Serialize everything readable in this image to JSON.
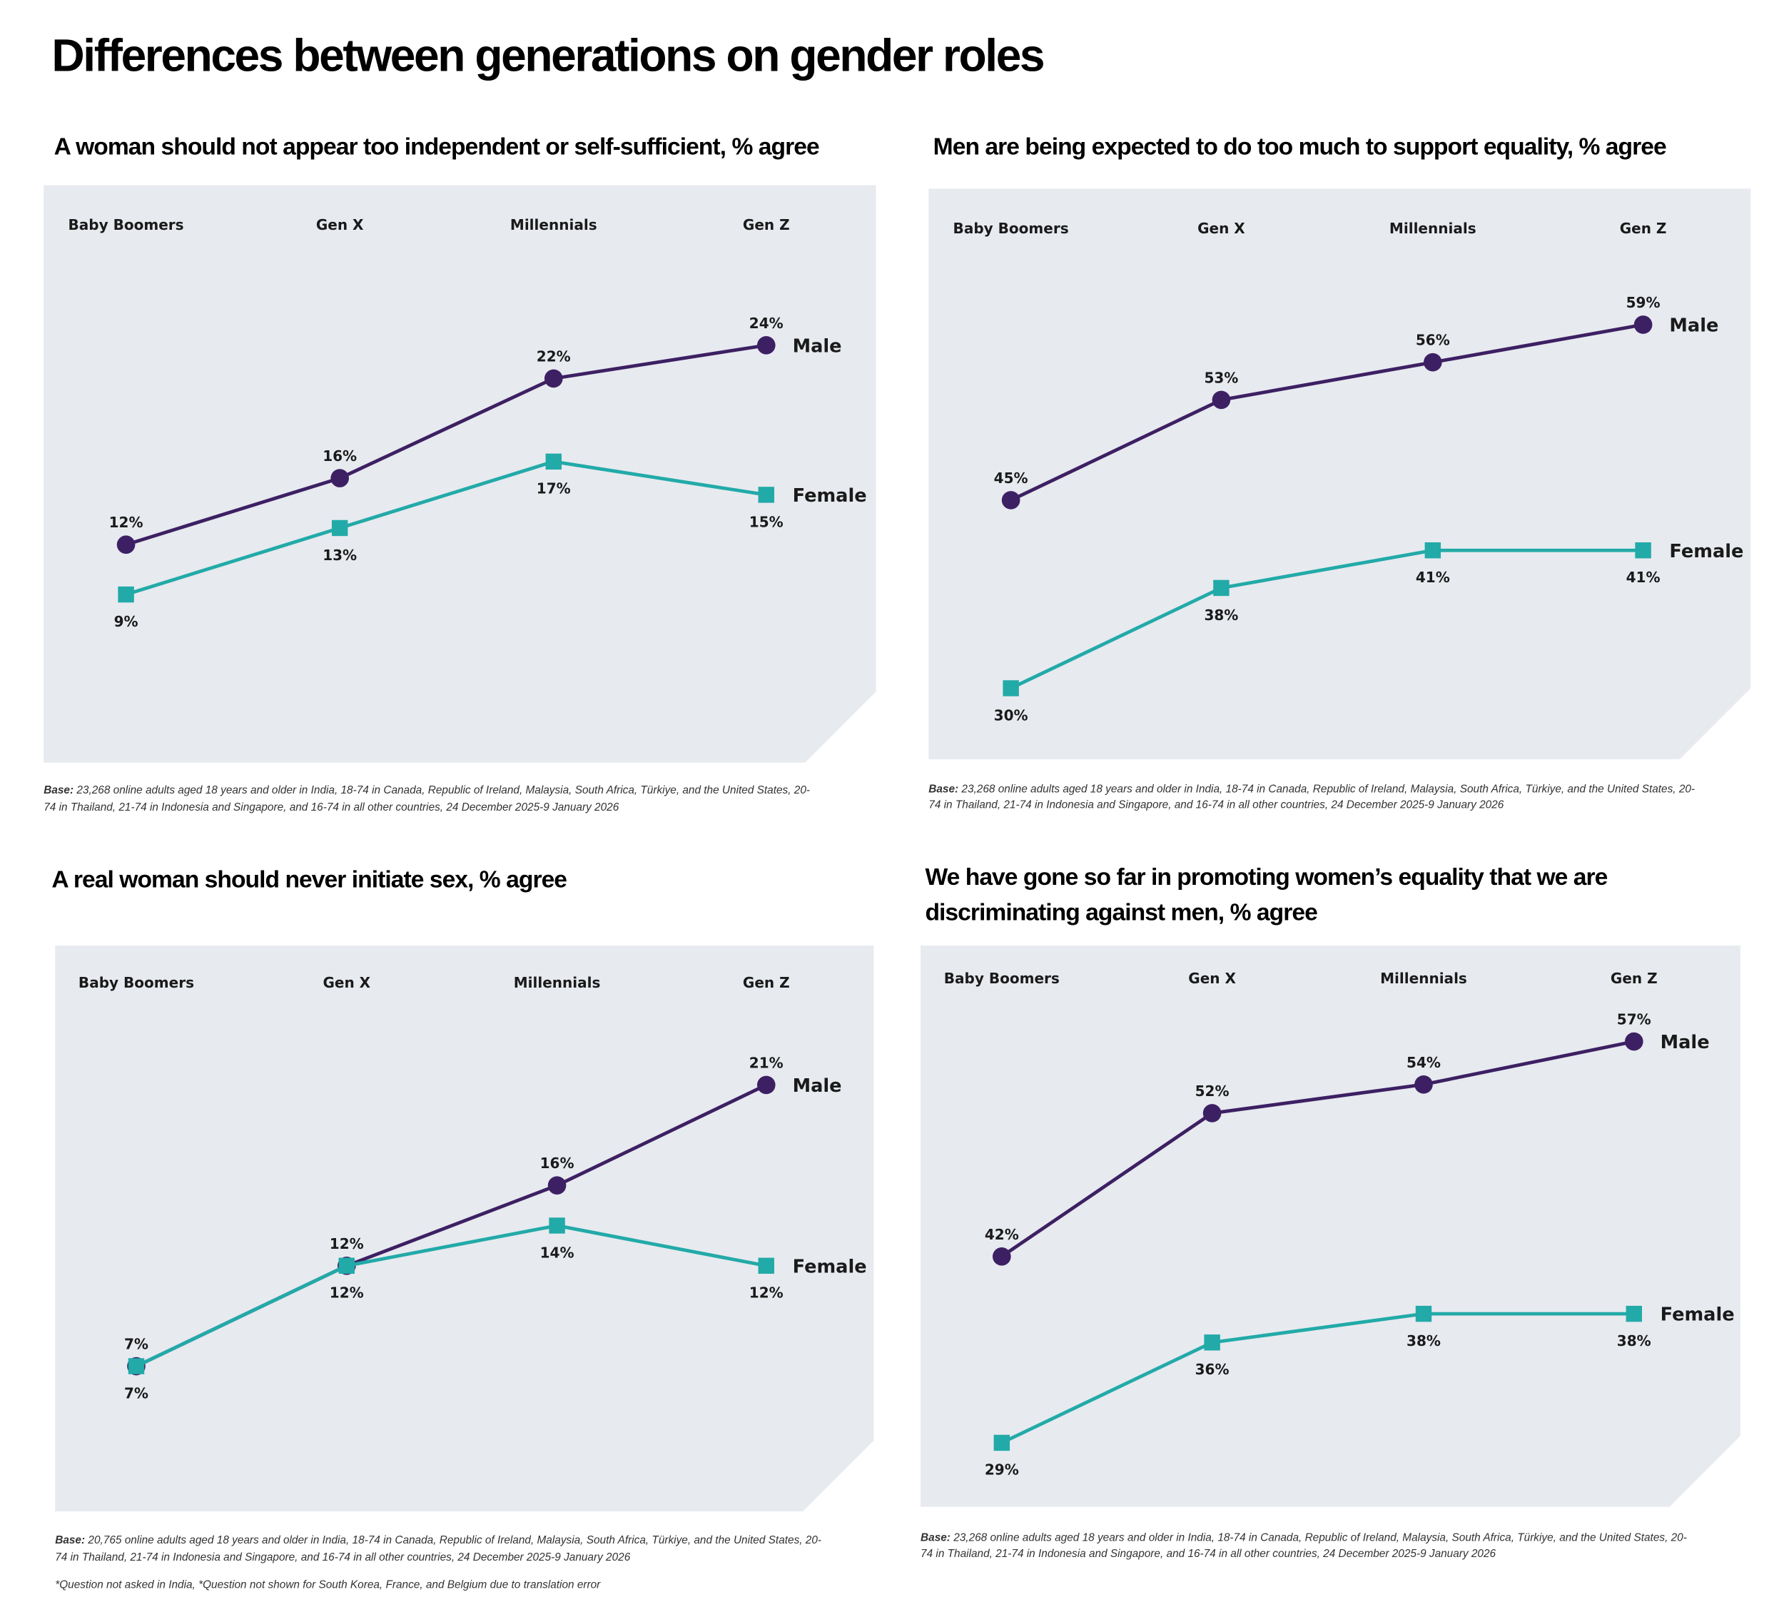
{
  "title": "Differences between generations on gender roles",
  "colors": {
    "male": "#3d2063",
    "female": "#22aaa8",
    "panel_bg": "#e7eaef"
  },
  "chart_data": [
    {
      "type": "line",
      "title": "A woman should not appear too independent or self-sufficient, % agree",
      "categories": [
        "Baby Boomers",
        "Gen X",
        "Millennials",
        "Gen Z"
      ],
      "series": [
        {
          "name": "Male",
          "marker": "circle",
          "values": [
            12,
            16,
            22,
            24
          ],
          "labels": [
            "12%",
            "16%",
            "22%",
            "24%"
          ]
        },
        {
          "name": "Female",
          "marker": "square",
          "values": [
            9,
            13,
            17,
            15
          ],
          "labels": [
            "9%",
            "13%",
            "17%",
            "15%"
          ]
        }
      ],
      "footnote_label": "Base:",
      "footnote": "23,268 online adults aged 18 years and older in India, 18-74 in Canada, Republic of Ireland, Malaysia, South Africa, Türkiye, and the United States, 20-",
      "footnote2": "74 in Thailand, 21-74 in Indonesia and Singapore, and 16-74 in all other countries, 24 December 2025-9 January 2026",
      "grid": false
    },
    {
      "type": "line",
      "title": "Men are being expected to do too much to support equality, % agree",
      "categories": [
        "Baby Boomers",
        "Gen X",
        "Millennials",
        "Gen Z"
      ],
      "series": [
        {
          "name": "Male",
          "marker": "circle",
          "values": [
            45,
            53,
            56,
            59
          ],
          "labels": [
            "45%",
            "53%",
            "56%",
            "59%"
          ]
        },
        {
          "name": "Female",
          "marker": "square",
          "values": [
            30,
            38,
            41,
            41
          ],
          "labels": [
            "30%",
            "38%",
            "41%",
            "41%"
          ]
        }
      ],
      "footnote_label": "Base:",
      "footnote": "23,268 online adults aged 18 years and older in India, 18-74 in Canada, Republic of Ireland, Malaysia, South Africa, Türkiye, and the United States, 20-",
      "footnote2": "74 in Thailand, 21-74 in Indonesia and Singapore, and 16-74 in all other countries, 24 December 2025-9 January 2026",
      "grid": false
    },
    {
      "type": "line",
      "title": "A real woman should never initiate sex, % agree",
      "categories": [
        "Baby Boomers",
        "Gen X",
        "Millennials",
        "Gen Z"
      ],
      "series": [
        {
          "name": "Male",
          "marker": "circle",
          "values": [
            7,
            12,
            16,
            21
          ],
          "labels": [
            "7%",
            "12%",
            "16%",
            "21%"
          ]
        },
        {
          "name": "Female",
          "marker": "square",
          "values": [
            7,
            12,
            14,
            12
          ],
          "labels": [
            "7%",
            "12%",
            "14%",
            "12%"
          ]
        }
      ],
      "footnote_label": "Base:",
      "footnote": "20,765 online adults aged 18 years and older in India, 18-74 in Canada, Republic of Ireland, Malaysia, South Africa, Türkiye, and the United States, 20-",
      "footnote2": "74 in Thailand, 21-74 in Indonesia and Singapore, and 16-74 in all other countries, 24 December 2025-9 January 2026",
      "footnote3": "*Question not asked in India, *Question not shown for South Korea, France, and Belgium due to translation error",
      "grid": false
    },
    {
      "type": "line",
      "title": "We have gone so far in promoting women’s equality that we are",
      "title2": "discriminating against men, % agree",
      "categories": [
        "Baby Boomers",
        "Gen X",
        "Millennials",
        "Gen Z"
      ],
      "series": [
        {
          "name": "Male",
          "marker": "circle",
          "values": [
            42,
            52,
            54,
            57
          ],
          "labels": [
            "42%",
            "52%",
            "54%",
            "57%"
          ]
        },
        {
          "name": "Female",
          "marker": "square",
          "values": [
            29,
            36,
            38,
            38
          ],
          "labels": [
            "29%",
            "36%",
            "38%",
            "38%"
          ]
        }
      ],
      "footnote_label": "Base:",
      "footnote": "23,268 online adults aged 18 years and older in India, 18-74 in Canada, Republic of Ireland, Malaysia, South Africa, Türkiye, and the United States, 20-",
      "footnote2": "74 in Thailand, 21-74 in Indonesia and Singapore, and 16-74 in all other countries, 24 December 2025-9 January 2026",
      "grid": false
    }
  ]
}
